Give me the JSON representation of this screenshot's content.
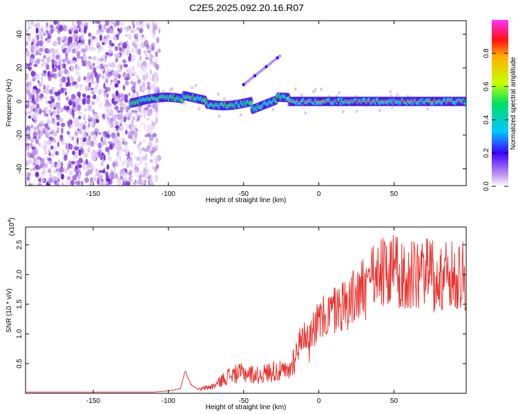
{
  "figure_title": "C2E5.2025.092.20.16.R07",
  "chart_data": [
    {
      "type": "heatmap",
      "title": "C2E5.2025.092.20.16.R07",
      "xlabel": "Height of straight line (km)",
      "ylabel": "Frequency (Hz)",
      "xlim": [
        -195,
        98
      ],
      "ylim": [
        -50,
        48
      ],
      "xticks": [
        -150,
        -100,
        -50,
        0,
        50
      ],
      "yticks": [
        -40,
        -20,
        0,
        20,
        40
      ],
      "colorbar": {
        "label": "Normalized spectral amplitude",
        "range": [
          0,
          1
        ],
        "ticks": [
          "0.0",
          "0.2",
          "0.4",
          "0.6",
          "0.8"
        ]
      },
      "features": {
        "noise_region_x": [
          -195,
          -110
        ],
        "signal_band_center_hz": 0,
        "signal_start_x": -125,
        "high_amplitude_start_x": -20,
        "side_trace": {
          "x": [
            -50,
            -26
          ],
          "y": [
            10,
            27
          ]
        }
      }
    },
    {
      "type": "line",
      "xlabel": "Height of straight line (km)",
      "ylabel": "SNR (10 * v/v)",
      "yscale_label": "(x10",
      "yscale_exp": "4",
      "xlim": [
        -195,
        98
      ],
      "ylim": [
        0,
        2.8
      ],
      "xticks": [
        -150,
        -100,
        -50,
        0,
        50
      ],
      "yticks": [
        "0.5",
        "1.0",
        "1.5",
        "2.0",
        "2.5"
      ],
      "series": [
        {
          "name": "SNR",
          "color": "#e8332e",
          "trend_x": [
            -195,
            -110,
            -100,
            -92,
            -89,
            -85,
            -80,
            -70,
            -60,
            -50,
            -40,
            -30,
            -20,
            -15,
            -10,
            0,
            10,
            20,
            30,
            40,
            50,
            60,
            70,
            80,
            98
          ],
          "trend_y": [
            0.02,
            0.02,
            0.04,
            0.08,
            0.38,
            0.15,
            0.06,
            0.12,
            0.3,
            0.35,
            0.3,
            0.38,
            0.35,
            0.7,
            1.0,
            1.2,
            1.4,
            1.55,
            1.75,
            2.0,
            2.05,
            1.95,
            2.0,
            1.95,
            1.95
          ]
        }
      ]
    }
  ]
}
